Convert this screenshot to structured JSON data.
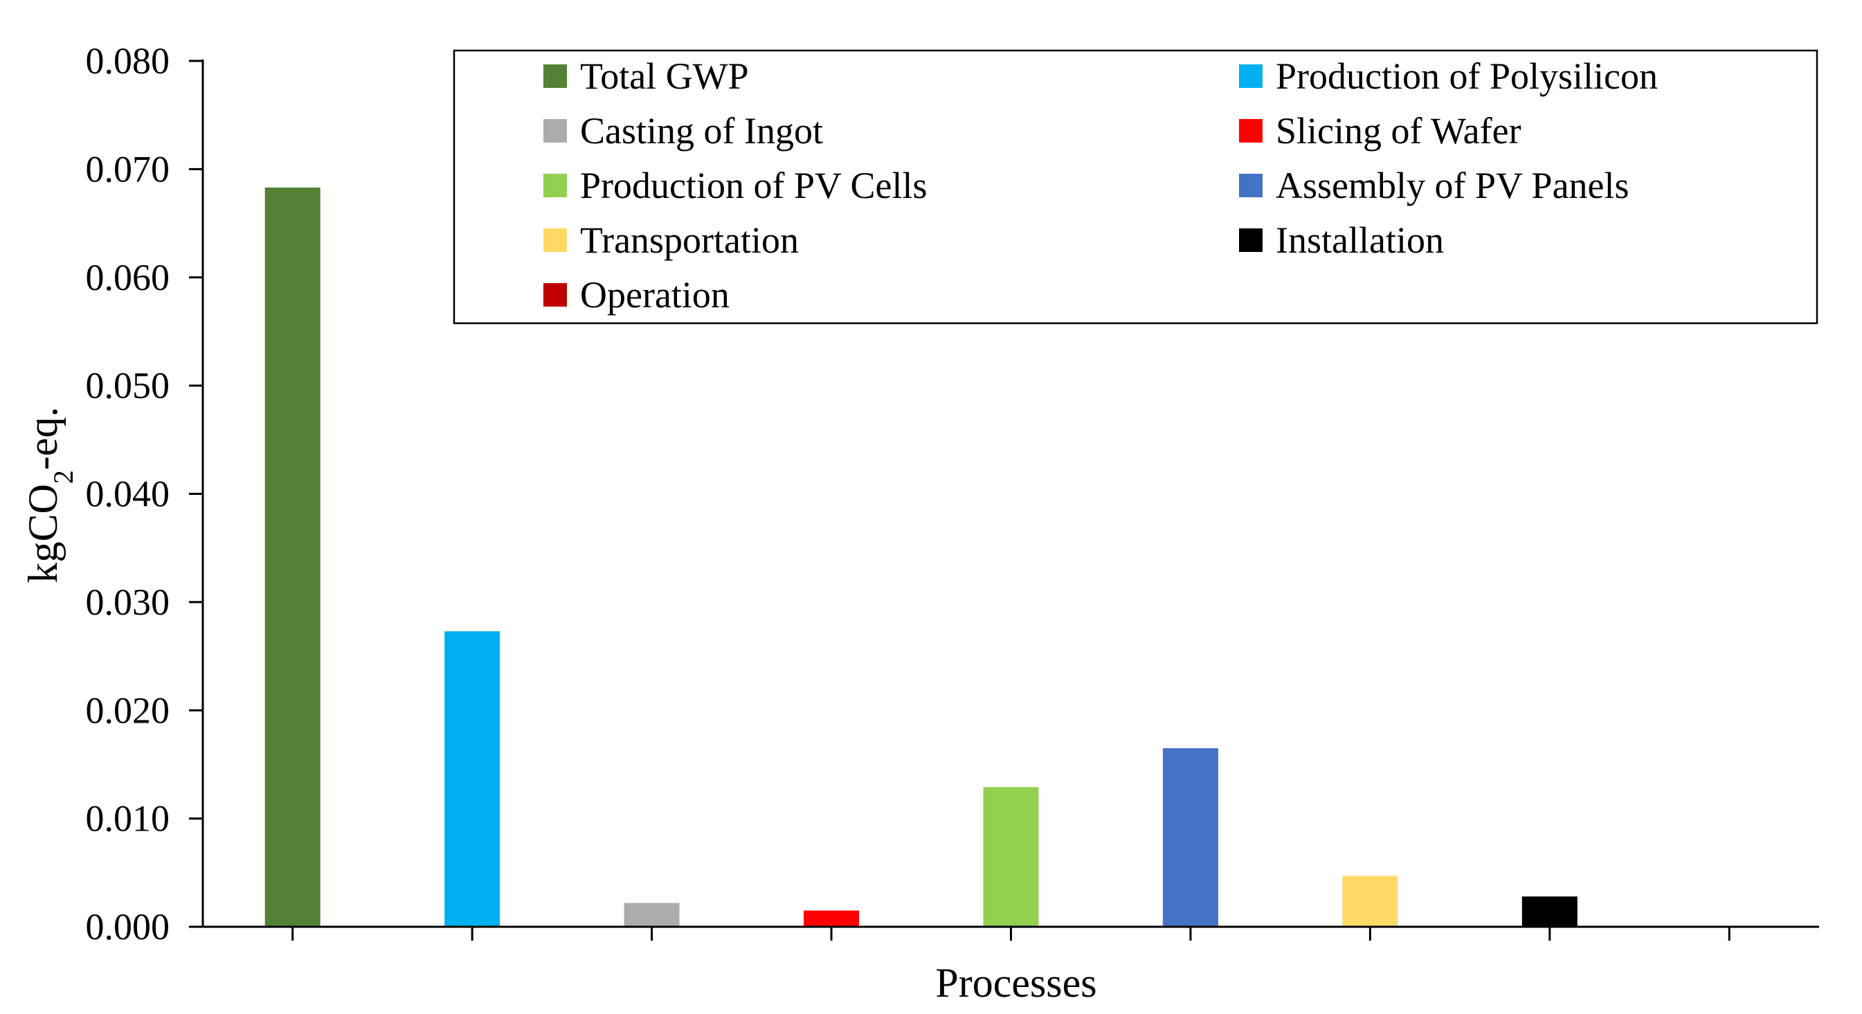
{
  "chart_data": {
    "type": "bar",
    "title": "",
    "xlabel": "Processes",
    "ylabel": {
      "base": "kgCO",
      "sub": "2",
      "suffix": "-eq."
    },
    "ylim": [
      0,
      0.08
    ],
    "yticks": [
      "0.000",
      "0.010",
      "0.020",
      "0.030",
      "0.040",
      "0.050",
      "0.060",
      "0.070",
      "0.080"
    ],
    "grid": false,
    "legend_position": "top",
    "categories": [
      "Total GWP",
      "Production of Polysilicon",
      "Casting of Ingot",
      "Slicing of Wafer",
      "Production of PV Cells",
      "Assembly of PV Panels",
      "Transportation",
      "Installation",
      "Operation"
    ],
    "values": [
      0.0683,
      0.0273,
      0.0022,
      0.0015,
      0.0129,
      0.0165,
      0.0047,
      0.0028,
      0.0
    ],
    "colors": [
      "#538135",
      "#00B0F0",
      "#AEABAB",
      "#FF0000",
      "#92D050",
      "#4472C4",
      "#FFD966",
      "#000000",
      "#C00000"
    ]
  }
}
